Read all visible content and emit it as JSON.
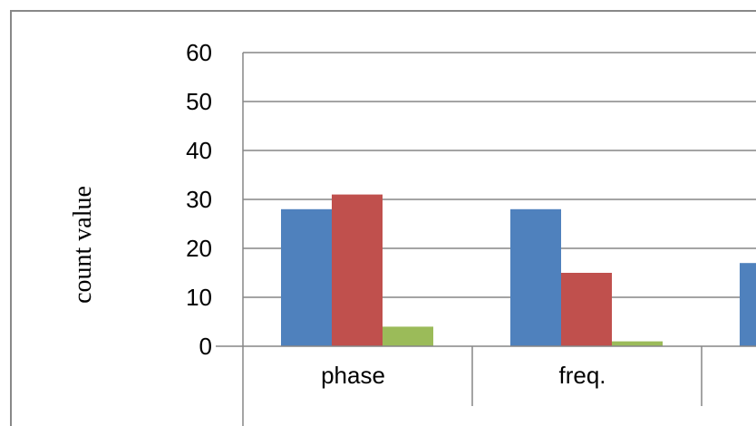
{
  "chart_data": {
    "type": "bar",
    "title": "",
    "categories": [
      "phase",
      "freq.",
      ""
    ],
    "series": [
      {
        "values": [
          28,
          28,
          17
        ],
        "color": "#4f81bd"
      },
      {
        "values": [
          31,
          15,
          null
        ],
        "color": "#c0504d"
      },
      {
        "values": [
          4,
          1,
          null
        ],
        "color": "#9bbb59"
      }
    ],
    "ylabel": "count value",
    "xlabel": "",
    "ylim": [
      0,
      60
    ],
    "yticks": [
      0,
      10,
      20,
      30,
      40,
      50,
      60
    ],
    "grid": true,
    "legend": "none"
  }
}
